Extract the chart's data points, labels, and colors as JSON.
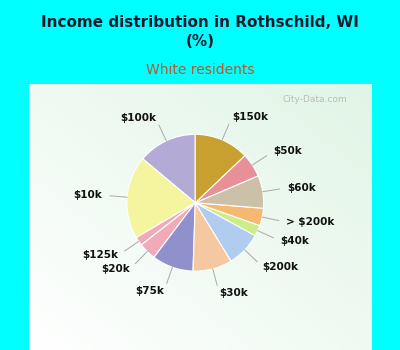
{
  "title": "Income distribution in Rothschild, WI\n(%)",
  "subtitle": "White residents",
  "title_color": "#1a1a2e",
  "subtitle_color": "#b05a2f",
  "bg_top_color": "#00ffff",
  "labels": [
    "$100k",
    "$10k",
    "$125k",
    "$20k",
    "$75k",
    "$30k",
    "$200k",
    "$40k",
    "> $200k",
    "$60k",
    "$50k",
    "$150k"
  ],
  "values": [
    13.5,
    19.0,
    2.0,
    4.0,
    9.5,
    9.0,
    8.0,
    2.5,
    4.0,
    7.5,
    5.5,
    12.5
  ],
  "colors": [
    "#b3aad6",
    "#f5f5a0",
    "#f0aab8",
    "#f0aab8",
    "#9090cc",
    "#f5c8a0",
    "#b0ccf0",
    "#ccee88",
    "#f5b870",
    "#cdc0a8",
    "#e89098",
    "#c8a030"
  ],
  "startangle": 90,
  "wedge_edge_color": "#ffffff",
  "label_fontsize": 7.5,
  "label_color": "#111111",
  "watermark": "City-Data.com"
}
